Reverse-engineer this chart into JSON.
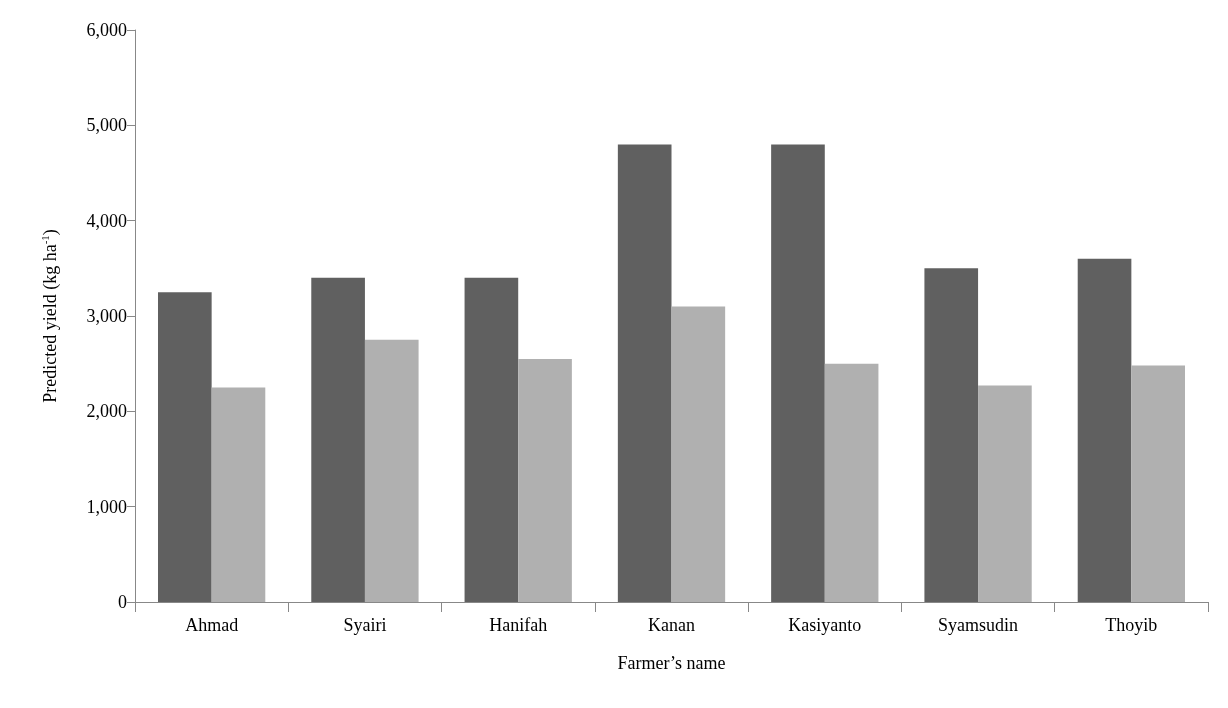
{
  "chart_data": {
    "type": "bar",
    "xlabel": "Farmer’s name",
    "ylabel": "Predicted yield (kg ha$^{-1}$)",
    "categories": [
      "Ahmad",
      "Syairi",
      "Hanifah",
      "Kanan",
      "Kasiyanto",
      "Syamsudin",
      "Thoyib"
    ],
    "series": [
      {
        "color": "#606060",
        "values": [
          3250,
          3400,
          3400,
          4800,
          4800,
          3500,
          3600
        ]
      },
      {
        "color": "#b0b0b0",
        "values": [
          2250,
          2750,
          2550,
          3100,
          2500,
          2270,
          2480
        ]
      }
    ],
    "ylim": [
      0,
      6000
    ],
    "yticks": [
      0,
      {
        "value": 1000,
        "label": "1,000"
      },
      {
        "value": 2000,
        "label": "2,000"
      },
      {
        "value": 3000,
        "label": "3,000"
      },
      {
        "value": 4000,
        "label": "4,000"
      },
      {
        "value": 5000,
        "label": "5,000"
      },
      {
        "value": 6000,
        "label": "6,000"
      }
    ],
    "grid": false
  }
}
